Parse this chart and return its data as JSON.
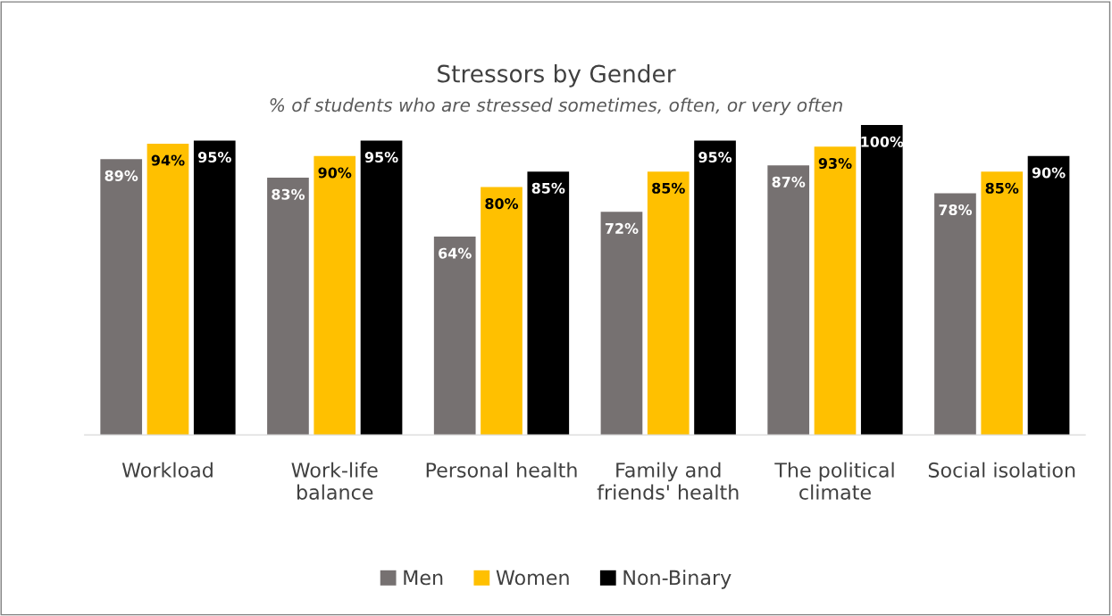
{
  "chart_data": {
    "type": "bar",
    "title": "Stressors by Gender",
    "subtitle": "% of students who are stressed sometimes, often, or very often",
    "categories": [
      "Workload",
      "Work-life balance",
      "Personal health",
      "Family and friends' health",
      "The political climate",
      "Social isolation"
    ],
    "series": [
      {
        "name": "Men",
        "color": "#767171",
        "values": [
          89,
          83,
          64,
          72,
          87,
          78
        ],
        "value_labels": [
          "89%",
          "83%",
          "64%",
          "72%",
          "87%",
          "78%"
        ]
      },
      {
        "name": "Women",
        "color": "#ffc000",
        "values": [
          94,
          90,
          80,
          85,
          93,
          85
        ],
        "value_labels": [
          "94%",
          "90%",
          "80%",
          "85%",
          "93%",
          "85%"
        ]
      },
      {
        "name": "Non-Binary",
        "color": "#000000",
        "values": [
          95,
          95,
          85,
          95,
          100,
          90
        ],
        "value_labels": [
          "95%",
          "95%",
          "85%",
          "95%",
          "100%",
          "90%"
        ]
      }
    ],
    "legend": "bottom",
    "grid": false
  }
}
